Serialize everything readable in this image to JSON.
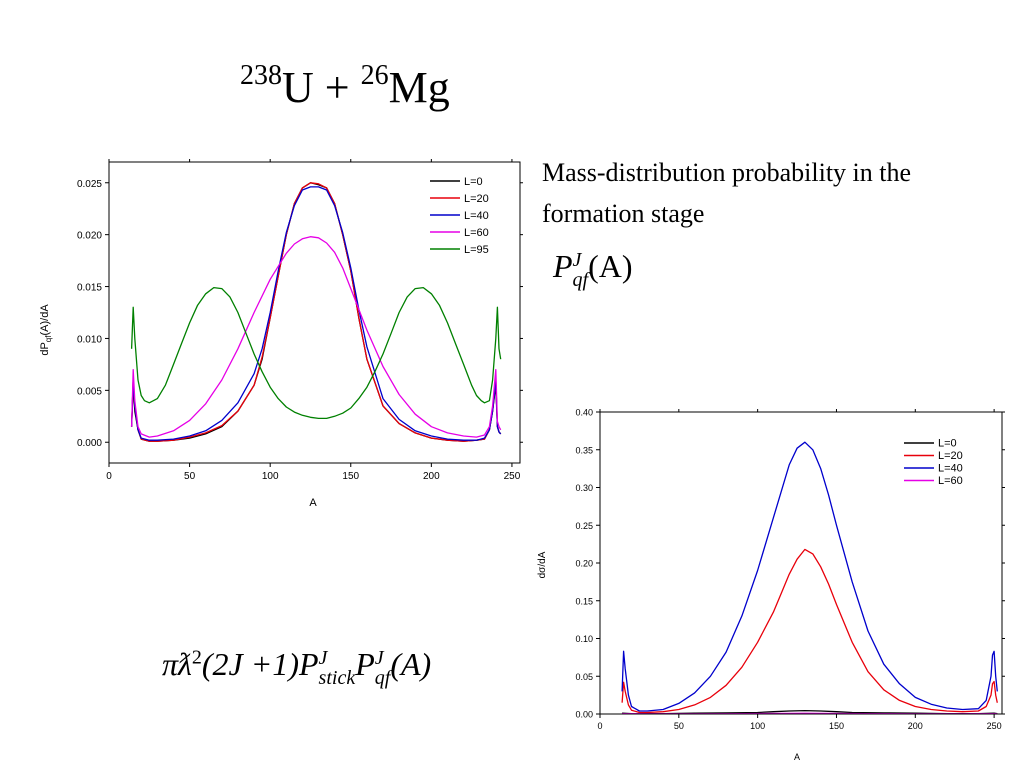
{
  "slide": {
    "title_sup1": "238",
    "title_u": "U + ",
    "title_sup2": "26",
    "title_mg": "Mg",
    "description": "Mass-distribution probability in the formation stage"
  },
  "formulas": {
    "pqf": {
      "P": "P",
      "J": "J",
      "qf": "qf",
      "arg": "(A)"
    },
    "cross_section": {
      "prefix": "πƛ",
      "sq": "2",
      "middle": "(2J +1)",
      "P1": "P",
      "J1": "J",
      "stick": "stick",
      "P2": "P",
      "J2": "J",
      "qf": "qf",
      "arg": "(A)"
    }
  },
  "colors": {
    "L0": "#000000",
    "L20": "#e8000b",
    "L40": "#0000cc",
    "L60": "#e600e6",
    "L95": "#008000"
  },
  "chart_data": [
    {
      "type": "line",
      "xlabel": "A",
      "ylabel": "dP_qf(A)/dA",
      "ylabel_main": "dP",
      "ylabel_sub": "qf",
      "ylabel_rest": "(A)/dA",
      "xlim": [
        0,
        255
      ],
      "ylim": [
        -0.002,
        0.027
      ],
      "xticks": [
        0,
        50,
        100,
        150,
        200,
        250
      ],
      "yticks": [
        0.0,
        0.005,
        0.01,
        0.015,
        0.02,
        0.025
      ],
      "ytick_labels": [
        "0.000",
        "0.005",
        "0.010",
        "0.015",
        "0.020",
        "0.025"
      ],
      "legend_position": "top-right",
      "series": [
        {
          "name": "L=0",
          "color": "#000000",
          "x": [
            14,
            15,
            16,
            18,
            20,
            25,
            30,
            40,
            50,
            60,
            70,
            80,
            90,
            95,
            100,
            105,
            110,
            115,
            120,
            125,
            130,
            135,
            140,
            145,
            150,
            155,
            160,
            170,
            180,
            190,
            200,
            210,
            220,
            228,
            233,
            236,
            238,
            240,
            241,
            242,
            243
          ],
          "y": [
            0.0015,
            0.0055,
            0.003,
            0.0012,
            0.0003,
            0.0001,
            0.0001,
            0.0002,
            0.0004,
            0.0008,
            0.0015,
            0.003,
            0.0055,
            0.008,
            0.012,
            0.016,
            0.02,
            0.023,
            0.0245,
            0.025,
            0.0248,
            0.0245,
            0.023,
            0.02,
            0.0165,
            0.012,
            0.008,
            0.0035,
            0.0018,
            0.0009,
            0.0004,
            0.0002,
            0.0001,
            0.0002,
            0.0003,
            0.0012,
            0.003,
            0.0055,
            0.0015,
            0.001,
            0.0008
          ]
        },
        {
          "name": "L=20",
          "color": "#e8000b",
          "x": [
            14,
            15,
            16,
            18,
            20,
            25,
            30,
            40,
            50,
            60,
            70,
            80,
            90,
            95,
            100,
            105,
            110,
            115,
            120,
            125,
            130,
            135,
            140,
            145,
            150,
            155,
            160,
            170,
            180,
            190,
            200,
            210,
            220,
            228,
            233,
            236,
            238,
            240,
            241,
            242,
            243
          ],
          "y": [
            0.0015,
            0.006,
            0.0035,
            0.0012,
            0.0003,
            0.0001,
            0.0001,
            0.0002,
            0.0005,
            0.0009,
            0.0016,
            0.003,
            0.0055,
            0.0082,
            0.012,
            0.016,
            0.02,
            0.023,
            0.0245,
            0.025,
            0.0249,
            0.0245,
            0.023,
            0.02,
            0.0165,
            0.012,
            0.008,
            0.0035,
            0.0018,
            0.0009,
            0.0004,
            0.0002,
            0.0001,
            0.0002,
            0.0003,
            0.0012,
            0.003,
            0.006,
            0.0015,
            0.001,
            0.0008
          ]
        },
        {
          "name": "L=40",
          "color": "#0000cc",
          "x": [
            14,
            15,
            16,
            18,
            20,
            25,
            30,
            40,
            50,
            60,
            70,
            80,
            90,
            95,
            100,
            105,
            110,
            115,
            120,
            125,
            130,
            135,
            140,
            145,
            150,
            155,
            160,
            170,
            180,
            190,
            200,
            210,
            220,
            228,
            233,
            236,
            238,
            240,
            241,
            242,
            243
          ],
          "y": [
            0.0015,
            0.006,
            0.0035,
            0.0012,
            0.0004,
            0.0002,
            0.0002,
            0.0003,
            0.0006,
            0.0011,
            0.0021,
            0.0038,
            0.0066,
            0.009,
            0.0125,
            0.0165,
            0.0202,
            0.0228,
            0.0243,
            0.0246,
            0.0246,
            0.0243,
            0.0228,
            0.0202,
            0.0168,
            0.0128,
            0.0092,
            0.0042,
            0.0022,
            0.0011,
            0.0006,
            0.0003,
            0.0002,
            0.0002,
            0.0004,
            0.0012,
            0.003,
            0.006,
            0.0015,
            0.001,
            0.0008
          ]
        },
        {
          "name": "L=60",
          "color": "#e600e6",
          "x": [
            14,
            15,
            16,
            18,
            20,
            25,
            30,
            40,
            50,
            60,
            70,
            80,
            90,
            100,
            110,
            115,
            120,
            125,
            130,
            135,
            140,
            145,
            150,
            160,
            170,
            180,
            190,
            200,
            210,
            220,
            228,
            233,
            236,
            238,
            240,
            241,
            242,
            243
          ],
          "y": [
            0.0015,
            0.007,
            0.004,
            0.0015,
            0.0008,
            0.0005,
            0.0006,
            0.0011,
            0.0021,
            0.0037,
            0.006,
            0.009,
            0.0125,
            0.0157,
            0.0182,
            0.0191,
            0.0196,
            0.0198,
            0.0197,
            0.0192,
            0.0183,
            0.0168,
            0.0148,
            0.0108,
            0.0073,
            0.0046,
            0.0027,
            0.0015,
            0.0009,
            0.0006,
            0.0005,
            0.0007,
            0.0015,
            0.0035,
            0.007,
            0.002,
            0.0015,
            0.0012
          ]
        },
        {
          "name": "L=95",
          "color": "#008000",
          "x": [
            14,
            15,
            16,
            18,
            20,
            22,
            25,
            30,
            35,
            40,
            45,
            50,
            55,
            60,
            65,
            70,
            75,
            80,
            85,
            90,
            95,
            100,
            105,
            110,
            115,
            120,
            125,
            130,
            135,
            140,
            145,
            150,
            155,
            160,
            165,
            170,
            175,
            180,
            185,
            190,
            195,
            200,
            205,
            210,
            215,
            220,
            225,
            228,
            231,
            233,
            236,
            238,
            240,
            241,
            242,
            243
          ],
          "y": [
            0.009,
            0.013,
            0.01,
            0.006,
            0.0045,
            0.004,
            0.0038,
            0.0042,
            0.0055,
            0.0075,
            0.0095,
            0.0115,
            0.0132,
            0.0143,
            0.0149,
            0.0148,
            0.014,
            0.0125,
            0.0105,
            0.0085,
            0.0068,
            0.0053,
            0.0042,
            0.0034,
            0.0029,
            0.0026,
            0.0024,
            0.0023,
            0.0023,
            0.0025,
            0.0028,
            0.0033,
            0.0042,
            0.0053,
            0.0068,
            0.0085,
            0.0105,
            0.0125,
            0.014,
            0.0148,
            0.0149,
            0.0143,
            0.0132,
            0.0115,
            0.0095,
            0.0075,
            0.0055,
            0.0045,
            0.004,
            0.0038,
            0.004,
            0.006,
            0.01,
            0.013,
            0.009,
            0.008
          ]
        }
      ]
    },
    {
      "type": "line",
      "xlabel": "A",
      "ylabel": "dσ/dA",
      "xlim": [
        0,
        255
      ],
      "ylim": [
        0,
        0.4
      ],
      "xticks": [
        0,
        50,
        100,
        150,
        200,
        250
      ],
      "yticks": [
        0.0,
        0.05,
        0.1,
        0.15,
        0.2,
        0.25,
        0.3,
        0.35,
        0.4
      ],
      "ytick_labels": [
        "0.00",
        "0.05",
        "0.10",
        "0.15",
        "0.20",
        "0.25",
        "0.30",
        "0.35",
        "0.40"
      ],
      "legend_position": "top-right",
      "series": [
        {
          "name": "L=0",
          "color": "#000000",
          "x": [
            14,
            20,
            40,
            60,
            80,
            100,
            110,
            120,
            130,
            140,
            150,
            160,
            180,
            200,
            220,
            240,
            250,
            252
          ],
          "y": [
            0.001,
            0.0005,
            0.0005,
            0.001,
            0.0015,
            0.002,
            0.003,
            0.004,
            0.0045,
            0.004,
            0.003,
            0.002,
            0.0015,
            0.001,
            0.0005,
            0.0005,
            0.001,
            0.0005
          ]
        },
        {
          "name": "L=20",
          "color": "#e8000b",
          "x": [
            14,
            15,
            16,
            18,
            20,
            25,
            30,
            40,
            50,
            60,
            70,
            80,
            90,
            100,
            110,
            115,
            120,
            125,
            130,
            135,
            140,
            145,
            150,
            160,
            170,
            180,
            190,
            200,
            210,
            220,
            230,
            240,
            245,
            248,
            249,
            250,
            251,
            252
          ],
          "y": [
            0.015,
            0.042,
            0.03,
            0.012,
            0.005,
            0.002,
            0.002,
            0.003,
            0.006,
            0.012,
            0.022,
            0.038,
            0.062,
            0.095,
            0.135,
            0.16,
            0.185,
            0.205,
            0.218,
            0.212,
            0.195,
            0.172,
            0.145,
            0.095,
            0.056,
            0.032,
            0.018,
            0.01,
            0.006,
            0.004,
            0.003,
            0.004,
            0.01,
            0.025,
            0.04,
            0.043,
            0.025,
            0.015
          ]
        },
        {
          "name": "L=40",
          "color": "#0000cc",
          "x": [
            14,
            15,
            16,
            18,
            20,
            25,
            30,
            40,
            50,
            60,
            70,
            80,
            90,
            100,
            110,
            115,
            120,
            125,
            130,
            135,
            140,
            145,
            150,
            160,
            170,
            180,
            190,
            200,
            210,
            220,
            230,
            240,
            245,
            248,
            249,
            250,
            251,
            252
          ],
          "y": [
            0.03,
            0.083,
            0.06,
            0.025,
            0.01,
            0.004,
            0.004,
            0.006,
            0.014,
            0.028,
            0.05,
            0.082,
            0.13,
            0.19,
            0.26,
            0.295,
            0.33,
            0.352,
            0.36,
            0.35,
            0.325,
            0.29,
            0.25,
            0.175,
            0.11,
            0.066,
            0.04,
            0.022,
            0.013,
            0.008,
            0.006,
            0.007,
            0.018,
            0.05,
            0.078,
            0.083,
            0.05,
            0.03
          ]
        },
        {
          "name": "L=60",
          "color": "#e600e6",
          "x": [
            14,
            30,
            60,
            90,
            120,
            130,
            140,
            170,
            200,
            230,
            250,
            252
          ],
          "y": [
            0.0005,
            0.0002,
            0.0003,
            0.0005,
            0.0008,
            0.0009,
            0.0008,
            0.0005,
            0.0003,
            0.0002,
            0.0005,
            0.0003
          ]
        }
      ]
    }
  ]
}
